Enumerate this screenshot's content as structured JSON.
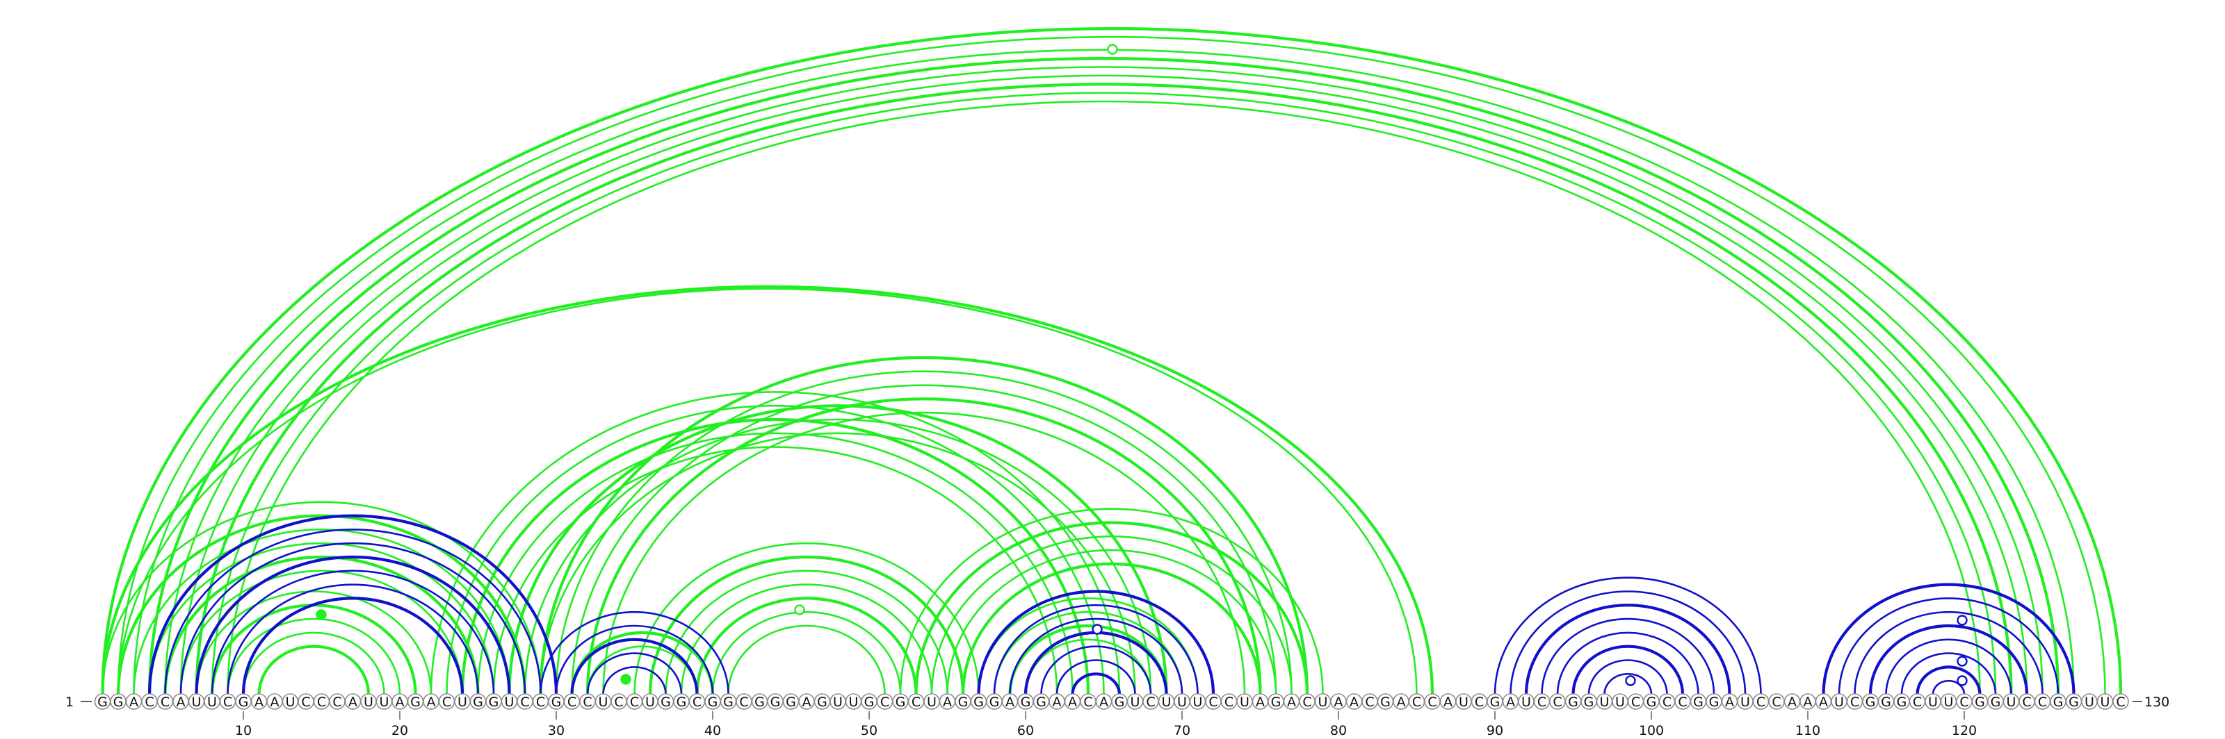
{
  "sequence": "GGACCAUUCGAAUCCCAUUAGACUGGUCCGCCUCCUGGCGGCGGGAGUUGCGCUAGGGAGGAACAGUCUUUCCUAGACUAACGACCAUCGAUCCGGUUCGCCGGAUCCAAAUCGGGCUUCGGUCCGGUUC",
  "labels": {
    "start_index": "1",
    "end_index": "130",
    "ticks": [
      "10",
      "20",
      "30",
      "40",
      "50",
      "60",
      "70",
      "80",
      "90",
      "100",
      "110",
      "120"
    ]
  },
  "colors": {
    "green": "#22ee22",
    "blue": "#1111cc"
  },
  "arcs": {
    "green": [
      [
        1,
        130
      ],
      [
        2,
        129
      ],
      [
        3,
        127
      ],
      [
        4,
        126
      ],
      [
        5,
        125
      ],
      [
        6,
        124
      ],
      [
        7,
        123
      ],
      [
        8,
        122
      ],
      [
        9,
        121
      ],
      [
        1,
        86
      ],
      [
        2,
        85
      ],
      [
        1,
        29
      ],
      [
        2,
        28
      ],
      [
        3,
        27
      ],
      [
        4,
        26
      ],
      [
        5,
        25
      ],
      [
        6,
        24
      ],
      [
        7,
        22
      ],
      [
        8,
        21
      ],
      [
        9,
        20
      ],
      [
        10,
        19
      ],
      [
        11,
        18
      ],
      [
        22,
        66
      ],
      [
        23,
        65
      ],
      [
        24,
        64
      ],
      [
        25,
        63
      ],
      [
        26,
        62
      ],
      [
        27,
        69
      ],
      [
        28,
        68
      ],
      [
        29,
        67
      ],
      [
        29,
        78
      ],
      [
        30,
        77
      ],
      [
        31,
        76
      ],
      [
        32,
        75
      ],
      [
        33,
        74
      ],
      [
        35,
        57
      ],
      [
        36,
        56
      ],
      [
        37,
        55
      ],
      [
        38,
        54
      ],
      [
        39,
        53
      ],
      [
        40,
        52
      ],
      [
        41,
        51
      ],
      [
        31,
        40
      ],
      [
        32,
        39
      ],
      [
        52,
        79
      ],
      [
        53,
        78
      ],
      [
        54,
        77
      ],
      [
        55,
        76
      ],
      [
        56,
        75
      ],
      [
        57,
        71
      ],
      [
        58,
        70
      ],
      [
        59,
        69
      ],
      [
        60,
        68
      ]
    ],
    "blue": [
      [
        4,
        30
      ],
      [
        5,
        29
      ],
      [
        6,
        28
      ],
      [
        7,
        27
      ],
      [
        8,
        26
      ],
      [
        9,
        25
      ],
      [
        10,
        24
      ],
      [
        29,
        41
      ],
      [
        30,
        40
      ],
      [
        31,
        39
      ],
      [
        32,
        38
      ],
      [
        33,
        37
      ],
      [
        57,
        72
      ],
      [
        58,
        71
      ],
      [
        59,
        70
      ],
      [
        60,
        69
      ],
      [
        61,
        68
      ],
      [
        62,
        67
      ],
      [
        63,
        66
      ],
      [
        90,
        107
      ],
      [
        91,
        106
      ],
      [
        92,
        105
      ],
      [
        93,
        104
      ],
      [
        94,
        103
      ],
      [
        95,
        102
      ],
      [
        96,
        101
      ],
      [
        97,
        100
      ],
      [
        111,
        127
      ],
      [
        112,
        126
      ],
      [
        113,
        125
      ],
      [
        114,
        124
      ],
      [
        115,
        123
      ],
      [
        116,
        122
      ],
      [
        117,
        121
      ],
      [
        118,
        120
      ]
    ]
  }
}
